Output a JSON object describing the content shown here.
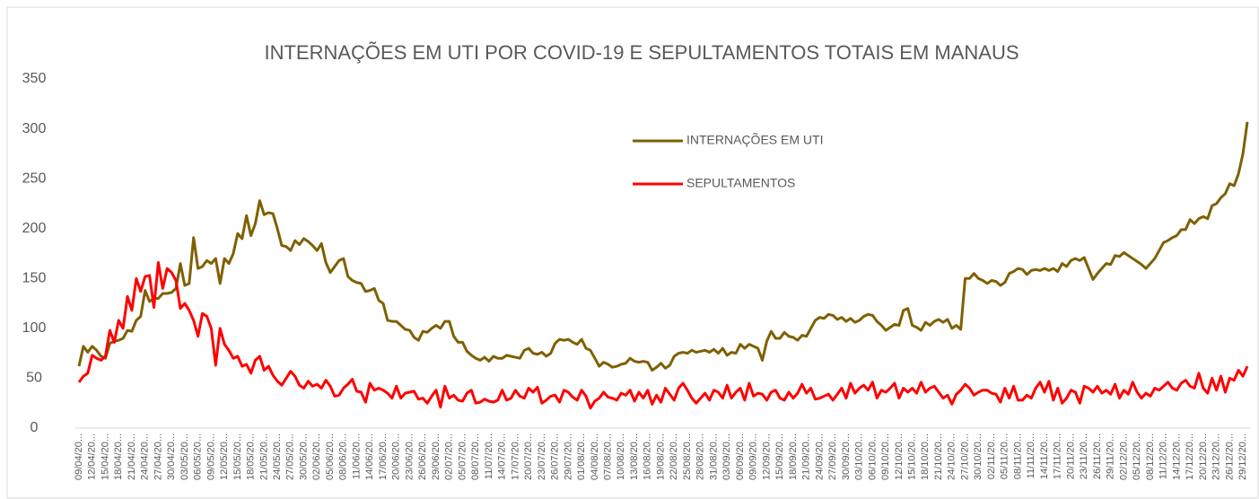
{
  "chart_data": {
    "type": "line",
    "title": "INTERNAÇÕES EM UTI POR COVID-19 E SEPULTAMENTOS TOTAIS EM MANAUS",
    "legend": "upper center",
    "ylim": [
      0,
      350
    ],
    "yticks": [
      0,
      50,
      100,
      150,
      200,
      250,
      300,
      350
    ],
    "grid": false,
    "categories": [
      "09/04/20...",
      null,
      null,
      "12/04/20...",
      null,
      null,
      "15/04/20...",
      null,
      null,
      "18/04/20...",
      null,
      null,
      "21/04/20...",
      null,
      null,
      "24/04/20...",
      null,
      null,
      "27/04/20...",
      null,
      null,
      "30/04/20...",
      null,
      null,
      "03/05/20...",
      null,
      null,
      "06/05/20...",
      null,
      null,
      "09/05/20...",
      null,
      null,
      "12/05/20...",
      null,
      null,
      "15/05/20...",
      null,
      null,
      "18/05/20...",
      null,
      null,
      "21/05/20...",
      null,
      null,
      "24/05/20...",
      null,
      null,
      "27/05/20...",
      null,
      null,
      "30/05/20...",
      null,
      null,
      "02/06/20...",
      null,
      null,
      "05/06/20...",
      null,
      null,
      "08/06/20...",
      null,
      null,
      "11/06/20...",
      null,
      null,
      "14/06/20...",
      null,
      null,
      "17/06/20...",
      null,
      null,
      "20/06/20...",
      null,
      null,
      "23/06/20...",
      null,
      null,
      "26/06/20...",
      null,
      null,
      "29/06/20...",
      null,
      null,
      "02/07/20...",
      null,
      null,
      "05/07/20...",
      null,
      null,
      "08/07/20...",
      null,
      null,
      "11/07/20...",
      null,
      null,
      "14/07/20...",
      null,
      null,
      "17/07/20...",
      null,
      null,
      "20/07/20...",
      null,
      null,
      "23/07/20...",
      null,
      null,
      "26/07/20...",
      null,
      null,
      "29/07/20...",
      null,
      null,
      "01/08/20...",
      null,
      null,
      "04/08/20...",
      null,
      null,
      "07/08/20...",
      null,
      null,
      "10/08/20...",
      null,
      null,
      "13/08/20...",
      null,
      null,
      "16/08/20...",
      null,
      null,
      "19/08/20...",
      null,
      null,
      "22/08/20...",
      null,
      null,
      "25/08/20...",
      null,
      null,
      "28/08/20...",
      null,
      null,
      "31/08/20...",
      null,
      null,
      "03/09/20...",
      null,
      null,
      "06/09/20...",
      null,
      null,
      "09/09/20...",
      null,
      null,
      "12/09/20...",
      null,
      null,
      "15/09/20...",
      null,
      null,
      "18/09/20...",
      null,
      null,
      "21/09/20...",
      null,
      null,
      "24/09/20...",
      null,
      null,
      "27/09/20...",
      null,
      null,
      "30/09/20...",
      null,
      null,
      "03/10/20...",
      null,
      null,
      "06/10/20...",
      null,
      null,
      "09/10/20...",
      null,
      null,
      "12/10/20...",
      null,
      null,
      "15/10/20...",
      null,
      null,
      "18/10/20...",
      null,
      null,
      "21/10/20...",
      null,
      null,
      "24/10/20...",
      null,
      null,
      "27/10/20...",
      null,
      null,
      "30/10/20...",
      null,
      null,
      "02/11/20...",
      null,
      null,
      "05/11/20...",
      null,
      null,
      "08/11/20...",
      null,
      null,
      "11/11/20...",
      null,
      null,
      "14/11/20...",
      null,
      null,
      "17/11/20...",
      null,
      null,
      "20/11/20...",
      null,
      null,
      "23/11/20...",
      null,
      null,
      "26/11/20...",
      null,
      null,
      "29/11/20...",
      null,
      null,
      "02/12/20...",
      null,
      null,
      "05/12/20...",
      null,
      null,
      "08/12/20...",
      null,
      null,
      "11/12/20...",
      null,
      null,
      "14/12/20...",
      null,
      null,
      "17/12/20...",
      null,
      null,
      "20/12/20...",
      null,
      null,
      "23/12/20...",
      null,
      null,
      "26/12/20...",
      null,
      null,
      "29/12/20...",
      null
    ],
    "series": [
      {
        "name": "INTERNAÇÕES EM UTI",
        "color": "#7f6000",
        "values": [
          62,
          82,
          76,
          82,
          78,
          72,
          70,
          85,
          87,
          88,
          90,
          98,
          97,
          108,
          112,
          138,
          127,
          130,
          130,
          135,
          135,
          136,
          140,
          165,
          143,
          145,
          191,
          160,
          162,
          168,
          165,
          170,
          145,
          170,
          165,
          175,
          195,
          190,
          213,
          193,
          205,
          228,
          214,
          216,
          215,
          200,
          183,
          182,
          178,
          188,
          184,
          190,
          187,
          183,
          178,
          185,
          166,
          156,
          162,
          168,
          170,
          152,
          148,
          146,
          145,
          137,
          138,
          140,
          128,
          125,
          108,
          107,
          107,
          103,
          99,
          98,
          91,
          88,
          97,
          96,
          100,
          103,
          100,
          107,
          107,
          92,
          86,
          86,
          77,
          73,
          70,
          68,
          71,
          67,
          72,
          70,
          70,
          73,
          72,
          71,
          70,
          78,
          80,
          75,
          74,
          76,
          72,
          75,
          85,
          89,
          88,
          89,
          86,
          84,
          89,
          80,
          78,
          70,
          62,
          66,
          64,
          61,
          62,
          64,
          65,
          70,
          67,
          66,
          67,
          66,
          58,
          61,
          65,
          60,
          63,
          72,
          75,
          76,
          75,
          78,
          76,
          77,
          78,
          76,
          79,
          75,
          80,
          73,
          76,
          75,
          84,
          80,
          84,
          82,
          80,
          68,
          87,
          97,
          90,
          90,
          96,
          92,
          91,
          88,
          93,
          92,
          100,
          108,
          111,
          110,
          114,
          113,
          109,
          111,
          107,
          110,
          106,
          108,
          112,
          114,
          113,
          107,
          103,
          98,
          101,
          104,
          103,
          118,
          120,
          103,
          101,
          98,
          106,
          103,
          107,
          109,
          106,
          109,
          100,
          103,
          99,
          150,
          150,
          155,
          150,
          148,
          145,
          148,
          147,
          143,
          146,
          155,
          157,
          160,
          159,
          154,
          158,
          159,
          158,
          160,
          158,
          160,
          157,
          165,
          162,
          168,
          170,
          168,
          171,
          160,
          149,
          155,
          160,
          165,
          164,
          173,
          172,
          176,
          173,
          170,
          167,
          164,
          160,
          165,
          170,
          178,
          186,
          188,
          191,
          193,
          199,
          199,
          209,
          205,
          210,
          212,
          210,
          223,
          225,
          231,
          235,
          245,
          243,
          255,
          275,
          307
        ]
      },
      {
        "name": "SEPULTAMENTOS",
        "color": "#ff0000",
        "values": [
          46,
          52,
          55,
          73,
          70,
          68,
          72,
          98,
          86,
          108,
          100,
          132,
          118,
          150,
          137,
          152,
          153,
          121,
          166,
          140,
          160,
          156,
          148,
          120,
          125,
          118,
          108,
          92,
          115,
          112,
          100,
          63,
          100,
          84,
          78,
          70,
          72,
          62,
          64,
          55,
          68,
          72,
          58,
          62,
          53,
          47,
          43,
          50,
          57,
          52,
          43,
          40,
          47,
          42,
          44,
          40,
          48,
          42,
          32,
          33,
          40,
          44,
          49,
          37,
          36,
          26,
          45,
          38,
          40,
          38,
          35,
          30,
          42,
          30,
          35,
          36,
          37,
          29,
          30,
          25,
          32,
          38,
          21,
          42,
          30,
          33,
          28,
          27,
          35,
          38,
          25,
          26,
          29,
          27,
          26,
          28,
          38,
          28,
          30,
          38,
          32,
          30,
          40,
          36,
          41,
          25,
          28,
          32,
          33,
          26,
          38,
          36,
          31,
          28,
          38,
          32,
          20,
          27,
          30,
          36,
          31,
          30,
          28,
          35,
          33,
          38,
          27,
          36,
          30,
          38,
          24,
          33,
          26,
          40,
          34,
          28,
          40,
          45,
          38,
          30,
          25,
          30,
          35,
          28,
          38,
          36,
          30,
          43,
          30,
          36,
          40,
          28,
          45,
          32,
          35,
          34,
          28,
          36,
          38,
          30,
          28,
          36,
          30,
          35,
          44,
          35,
          40,
          29,
          30,
          32,
          34,
          28,
          34,
          40,
          30,
          45,
          35,
          40,
          43,
          38,
          46,
          30,
          38,
          36,
          40,
          45,
          30,
          40,
          36,
          40,
          35,
          46,
          36,
          40,
          42,
          36,
          30,
          33,
          24,
          34,
          38,
          44,
          40,
          33,
          36,
          38,
          38,
          35,
          34,
          26,
          40,
          30,
          42,
          28,
          28,
          33,
          30,
          40,
          46,
          36,
          47,
          28,
          40,
          25,
          30,
          38,
          36,
          25,
          42,
          40,
          36,
          42,
          35,
          38,
          34,
          44,
          30,
          38,
          34,
          46,
          36,
          30,
          35,
          32,
          40,
          38,
          42,
          46,
          40,
          38,
          45,
          48,
          42,
          40,
          55,
          40,
          35,
          50,
          38,
          52,
          36,
          50,
          48,
          58,
          52,
          62
        ]
      }
    ]
  }
}
